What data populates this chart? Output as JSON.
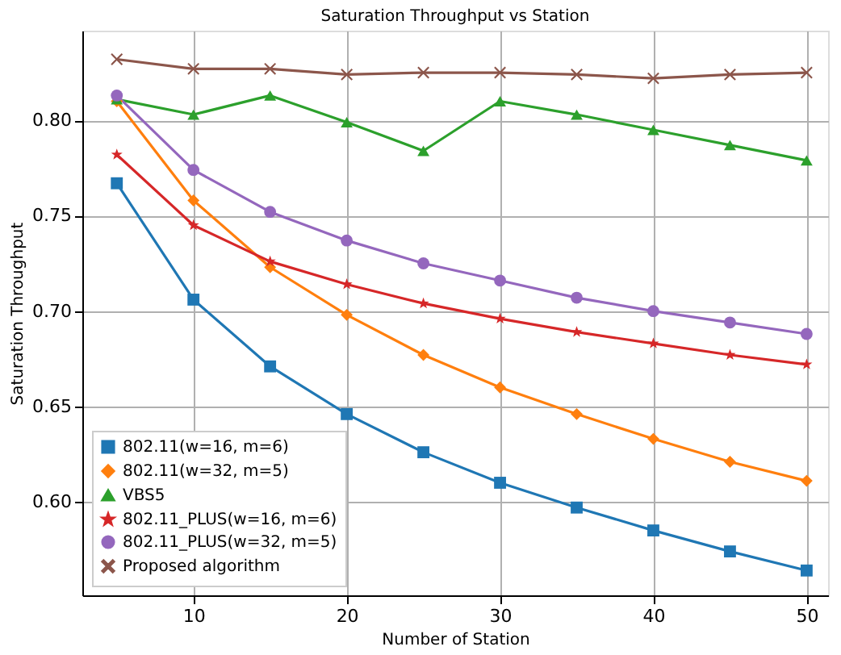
{
  "chart_data": {
    "type": "line",
    "title": "Saturation Throughput vs Station",
    "xlabel": "Number of Station",
    "ylabel": "Saturation Throughput",
    "x": [
      5,
      10,
      15,
      20,
      25,
      30,
      35,
      40,
      45,
      50
    ],
    "series": [
      {
        "name": "802.11(w=16, m=6)",
        "color": "#1f77b4",
        "marker": "square",
        "values": [
          0.767,
          0.706,
          0.671,
          0.646,
          0.626,
          0.61,
          0.597,
          0.585,
          0.574,
          0.564
        ]
      },
      {
        "name": "802.11(w=32, m=5)",
        "color": "#ff7f0e",
        "marker": "diamond",
        "values": [
          0.81,
          0.758,
          0.723,
          0.698,
          0.677,
          0.66,
          0.646,
          0.633,
          0.621,
          0.611
        ]
      },
      {
        "name": "VBS5",
        "color": "#2ca02c",
        "marker": "triangle",
        "values": [
          0.811,
          0.803,
          0.813,
          0.799,
          0.784,
          0.81,
          0.803,
          0.795,
          0.787,
          0.779
        ]
      },
      {
        "name": "802.11_PLUS(w=16, m=6)",
        "color": "#d62728",
        "marker": "star",
        "values": [
          0.782,
          0.745,
          0.726,
          0.714,
          0.704,
          0.696,
          0.689,
          0.683,
          0.677,
          0.672
        ]
      },
      {
        "name": "802.11_PLUS(w=32, m=5)",
        "color": "#9467bd",
        "marker": "circle",
        "values": [
          0.813,
          0.774,
          0.752,
          0.737,
          0.725,
          0.716,
          0.707,
          0.7,
          0.694,
          0.688
        ]
      },
      {
        "name": "Proposed algorithm",
        "color": "#8c564b",
        "marker": "cross",
        "values": [
          0.832,
          0.827,
          0.827,
          0.824,
          0.825,
          0.825,
          0.824,
          0.822,
          0.824,
          0.825
        ]
      }
    ],
    "xlim": [
      2.75,
      51.4
    ],
    "xticks": [
      10,
      20,
      30,
      40,
      50
    ],
    "ylim": [
      0.551,
      0.847
    ],
    "yticks": [
      {
        "value": 0.6,
        "label": "0.60"
      },
      0.65,
      {
        "value": 0.7,
        "label": "0.70"
      },
      0.75,
      {
        "value": 0.8,
        "label": "0.80"
      }
    ],
    "grid": true,
    "legend": "bottom left",
    "line_style": "solid"
  }
}
